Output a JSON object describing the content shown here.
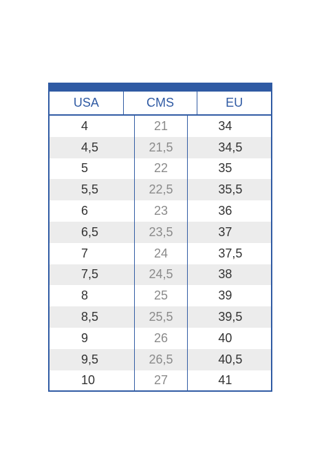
{
  "table": {
    "headers": {
      "usa": "USA",
      "cms": "CMS",
      "eu": "EU"
    },
    "rows": [
      {
        "usa": "4",
        "cms": "21",
        "eu": "34"
      },
      {
        "usa": "4,5",
        "cms": "21,5",
        "eu": "34,5"
      },
      {
        "usa": "5",
        "cms": "22",
        "eu": "35"
      },
      {
        "usa": "5,5",
        "cms": "22,5",
        "eu": "35,5"
      },
      {
        "usa": "6",
        "cms": "23",
        "eu": "36"
      },
      {
        "usa": "6,5",
        "cms": "23,5",
        "eu": "37"
      },
      {
        "usa": "7",
        "cms": "24",
        "eu": "37,5"
      },
      {
        "usa": "7,5",
        "cms": "24,5",
        "eu": "38"
      },
      {
        "usa": "8",
        "cms": "25",
        "eu": "39"
      },
      {
        "usa": "8,5",
        "cms": "25,5",
        "eu": "39,5"
      },
      {
        "usa": "9",
        "cms": "26",
        "eu": "40"
      },
      {
        "usa": "9,5",
        "cms": "26,5",
        "eu": "40,5"
      },
      {
        "usa": "10",
        "cms": "27",
        "eu": "41"
      }
    ]
  },
  "colors": {
    "accent": "#2f5aa3",
    "row_shade": "#ececec",
    "text_dark": "#333333",
    "text_gray": "#8a8a8a"
  }
}
